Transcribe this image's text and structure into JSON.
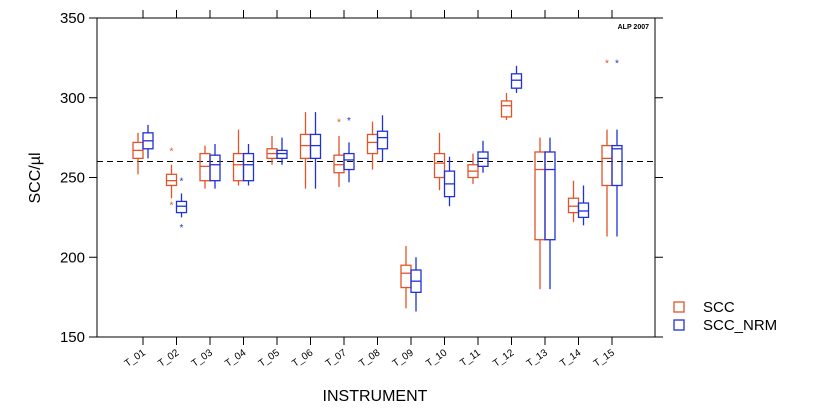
{
  "chart_data": {
    "type": "box",
    "title": "",
    "watermark": "ALP 2007",
    "xlabel": "INSTRUMENT",
    "ylabel": "SCC/µl",
    "ylim": [
      150,
      350
    ],
    "yticks": [
      150,
      200,
      250,
      300,
      350
    ],
    "reference_line": 260,
    "categories": [
      "T_01",
      "T_02",
      "T_03",
      "T_04",
      "T_05",
      "T_06",
      "T_07",
      "T_08",
      "T_09",
      "T_10",
      "T_11",
      "T_12",
      "T_13",
      "T_14",
      "T_15"
    ],
    "legend_position": "bottom-right",
    "series": [
      {
        "name": "SCC",
        "color": "#e0552a",
        "boxes": [
          {
            "min": 252,
            "q1": 262,
            "median": 267,
            "q3": 272,
            "max": 278,
            "outliers": []
          },
          {
            "min": 237,
            "q1": 245,
            "median": 248,
            "q3": 252,
            "max": 258,
            "outliers": [
              267,
              233
            ]
          },
          {
            "min": 243,
            "q1": 248,
            "median": 257,
            "q3": 265,
            "max": 270,
            "outliers": []
          },
          {
            "min": 245,
            "q1": 248,
            "median": 258,
            "q3": 265,
            "max": 280,
            "outliers": []
          },
          {
            "min": 258,
            "q1": 262,
            "median": 265,
            "q3": 268,
            "max": 276,
            "outliers": []
          },
          {
            "min": 243,
            "q1": 262,
            "median": 270,
            "q3": 277,
            "max": 291,
            "outliers": []
          },
          {
            "min": 244,
            "q1": 253,
            "median": 258,
            "q3": 264,
            "max": 276,
            "outliers": [
              285
            ]
          },
          {
            "min": 255,
            "q1": 265,
            "median": 272,
            "q3": 277,
            "max": 285,
            "outliers": []
          },
          {
            "min": 168,
            "q1": 181,
            "median": 190,
            "q3": 195,
            "max": 207,
            "outliers": []
          },
          {
            "min": 242,
            "q1": 250,
            "median": 259,
            "q3": 265,
            "max": 278,
            "outliers": []
          },
          {
            "min": 246,
            "q1": 250,
            "median": 254,
            "q3": 258,
            "max": 265,
            "outliers": []
          },
          {
            "min": 286,
            "q1": 288,
            "median": 295,
            "q3": 298,
            "max": 303,
            "outliers": []
          },
          {
            "min": 180,
            "q1": 211,
            "median": 255,
            "q3": 266,
            "max": 275,
            "outliers": []
          },
          {
            "min": 222,
            "q1": 228,
            "median": 232,
            "q3": 237,
            "max": 248,
            "outliers": []
          },
          {
            "min": 213,
            "q1": 245,
            "median": 262,
            "q3": 270,
            "max": 280,
            "outliers": [
              322
            ]
          }
        ]
      },
      {
        "name": "SCC_NRM",
        "color": "#1e32d6",
        "boxes": [
          {
            "min": 262,
            "q1": 268,
            "median": 273,
            "q3": 278,
            "max": 283,
            "outliers": []
          },
          {
            "min": 225,
            "q1": 228,
            "median": 232,
            "q3": 235,
            "max": 240,
            "outliers": [
              248,
              219
            ]
          },
          {
            "min": 243,
            "q1": 248,
            "median": 258,
            "q3": 264,
            "max": 271,
            "outliers": []
          },
          {
            "min": 245,
            "q1": 248,
            "median": 258,
            "q3": 265,
            "max": 271,
            "outliers": []
          },
          {
            "min": 258,
            "q1": 262,
            "median": 265,
            "q3": 267,
            "max": 275,
            "outliers": []
          },
          {
            "min": 243,
            "q1": 262,
            "median": 270,
            "q3": 277,
            "max": 291,
            "outliers": []
          },
          {
            "min": 247,
            "q1": 255,
            "median": 261,
            "q3": 265,
            "max": 272,
            "outliers": [
              286
            ]
          },
          {
            "min": 260,
            "q1": 268,
            "median": 275,
            "q3": 279,
            "max": 289,
            "outliers": []
          },
          {
            "min": 166,
            "q1": 178,
            "median": 185,
            "q3": 192,
            "max": 200,
            "outliers": []
          },
          {
            "min": 232,
            "q1": 238,
            "median": 246,
            "q3": 254,
            "max": 263,
            "outliers": []
          },
          {
            "min": 253,
            "q1": 257,
            "median": 262,
            "q3": 266,
            "max": 273,
            "outliers": []
          },
          {
            "min": 303,
            "q1": 306,
            "median": 311,
            "q3": 315,
            "max": 320,
            "outliers": []
          },
          {
            "min": 180,
            "q1": 211,
            "median": 255,
            "q3": 266,
            "max": 275,
            "outliers": []
          },
          {
            "min": 220,
            "q1": 225,
            "median": 229,
            "q3": 234,
            "max": 245,
            "outliers": []
          },
          {
            "min": 213,
            "q1": 245,
            "median": 268,
            "q3": 270,
            "max": 280,
            "outliers": [
              322
            ]
          }
        ]
      }
    ]
  }
}
